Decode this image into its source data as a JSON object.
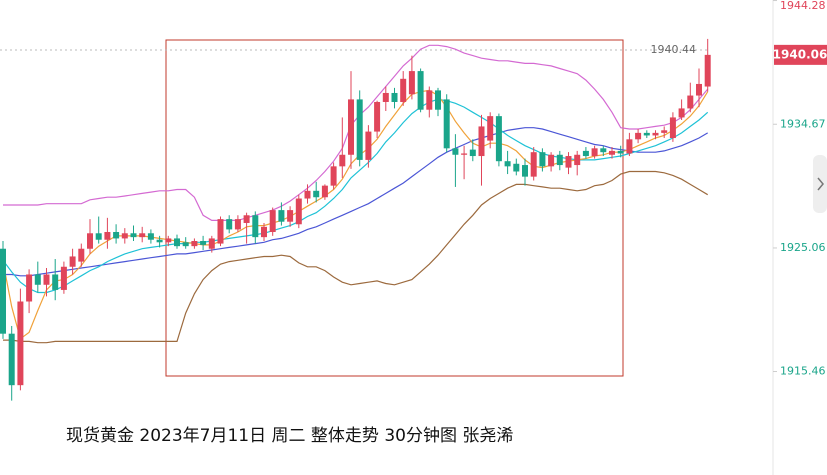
{
  "chart_data": {
    "type": "candlestick",
    "title": "现货黄金 2023年7月11日 周二 整体走势 30分钟图  张尧浠",
    "up_color": "#e0455a",
    "down_color": "#1aa58a",
    "ylim": [
      1907.5,
      1944.4
    ],
    "yticks": [
      1944.28,
      1934.67,
      1925.06,
      1915.46
    ],
    "reference_line": 1940.44,
    "current_price": 1940.06,
    "categories": [
      null,
      null,
      null,
      null,
      null,
      null,
      null,
      null,
      null,
      null,
      null,
      null,
      null,
      null,
      null,
      null,
      null,
      null,
      null,
      null,
      null,
      null,
      null,
      null,
      null,
      null,
      null,
      null,
      null,
      null,
      null,
      null,
      null,
      null,
      null,
      null,
      null,
      null,
      null,
      null,
      null,
      null,
      null,
      null,
      null,
      null,
      null,
      null,
      null,
      null,
      null,
      null,
      null,
      null,
      null,
      null,
      null,
      null,
      null,
      null,
      null,
      null,
      null,
      null,
      null,
      null,
      null,
      null,
      null,
      null,
      null,
      null,
      null,
      null,
      null,
      null,
      null,
      null,
      null,
      null,
      null,
      null
    ],
    "open": [
      1925.0,
      1918.4,
      1914.4,
      1920.9,
      1923.0,
      1922.2,
      1923.0,
      1921.8,
      1923.6,
      1924.0,
      1925.0,
      1926.2,
      1925.7,
      1926.3,
      1925.8,
      1926.2,
      1925.9,
      1926.2,
      1925.7,
      1925.5,
      1925.8,
      1925.5,
      1925.2,
      1925.6,
      1925.0,
      1925.4,
      1927.3,
      1926.5,
      1927.0,
      1927.6,
      1925.9,
      1926.3,
      1928.0,
      1927.1,
      1926.9,
      1928.9,
      1929.5,
      1929.0,
      1929.9,
      1931.4,
      1932.3,
      1936.6,
      1931.9,
      1934.1,
      1936.4,
      1937.1,
      1936.4,
      1937.0,
      1938.8,
      1935.8,
      1937.3,
      1936.6,
      1932.8,
      1932.3,
      1932.7,
      1932.2,
      1933.4,
      1935.3,
      1931.8,
      1931.6,
      1931.5,
      1930.6,
      1932.5,
      1931.4,
      1932.3,
      1931.3,
      1931.5,
      1932.6,
      1932.2,
      1932.8,
      1932.3,
      1932.6,
      1932.4,
      1933.5,
      1934.0,
      1933.8,
      1934.0,
      1933.6,
      1935.2,
      1935.9,
      1936.9,
      1937.6
    ],
    "high": [
      1925.6,
      1919.0,
      1921.9,
      1923.4,
      1924.0,
      1923.5,
      1924.2,
      1924.0,
      1925.0,
      1925.4,
      1927.3,
      1927.5,
      1927.4,
      1926.9,
      1926.6,
      1926.8,
      1926.7,
      1926.5,
      1926.0,
      1926.0,
      1926.1,
      1925.9,
      1925.8,
      1926.0,
      1926.0,
      1927.5,
      1927.6,
      1927.6,
      1927.8,
      1927.9,
      1927.0,
      1928.2,
      1928.6,
      1928.3,
      1929.2,
      1930.0,
      1930.2,
      1930.0,
      1931.7,
      1935.2,
      1938.8,
      1937.3,
      1934.6,
      1936.5,
      1937.6,
      1937.5,
      1938.8,
      1940.0,
      1939.0,
      1937.6,
      1937.5,
      1937.0,
      1933.9,
      1933.0,
      1933.5,
      1935.4,
      1935.6,
      1935.5,
      1932.6,
      1932.0,
      1932.0,
      1932.9,
      1932.8,
      1932.5,
      1932.6,
      1932.5,
      1932.6,
      1932.9,
      1933.0,
      1933.0,
      1932.9,
      1933.0,
      1934.0,
      1934.3,
      1934.2,
      1934.2,
      1934.5,
      1935.6,
      1936.6,
      1937.9,
      1939.0,
      1941.3
    ],
    "low": [
      1918.0,
      1913.2,
      1914.0,
      1920.0,
      1921.6,
      1921.3,
      1921.0,
      1921.5,
      1923.0,
      1923.6,
      1924.6,
      1925.4,
      1925.0,
      1925.4,
      1925.4,
      1925.6,
      1925.5,
      1925.4,
      1925.1,
      1925.2,
      1925.0,
      1925.0,
      1925.0,
      1924.9,
      1924.7,
      1925.2,
      1926.2,
      1926.3,
      1925.4,
      1925.4,
      1925.6,
      1926.0,
      1926.8,
      1926.7,
      1926.6,
      1928.5,
      1928.6,
      1928.8,
      1929.6,
      1930.5,
      1931.2,
      1931.4,
      1931.3,
      1933.6,
      1935.7,
      1935.9,
      1936.1,
      1936.6,
      1935.6,
      1935.2,
      1935.3,
      1932.5,
      1929.8,
      1930.4,
      1931.8,
      1929.9,
      1932.8,
      1931.4,
      1930.8,
      1930.7,
      1929.9,
      1930.3,
      1931.0,
      1931.0,
      1931.1,
      1930.8,
      1930.7,
      1932.0,
      1932.0,
      1932.2,
      1932.0,
      1932.1,
      1932.2,
      1933.2,
      1933.6,
      1933.5,
      1933.6,
      1933.3,
      1935.0,
      1935.6,
      1936.0,
      1937.2
    ],
    "close": [
      1918.4,
      1914.4,
      1920.9,
      1923.0,
      1922.2,
      1923.0,
      1921.8,
      1923.6,
      1924.4,
      1925.0,
      1926.2,
      1925.7,
      1926.3,
      1925.8,
      1926.2,
      1925.9,
      1926.2,
      1925.7,
      1925.5,
      1925.8,
      1925.2,
      1925.2,
      1925.6,
      1925.3,
      1925.8,
      1927.3,
      1926.5,
      1927.3,
      1927.6,
      1925.9,
      1926.7,
      1928.0,
      1927.1,
      1928.0,
      1928.9,
      1929.5,
      1929.0,
      1929.9,
      1931.4,
      1932.3,
      1936.6,
      1931.9,
      1934.1,
      1936.4,
      1937.1,
      1936.4,
      1938.2,
      1938.8,
      1935.8,
      1937.3,
      1935.8,
      1932.8,
      1932.3,
      1932.4,
      1932.2,
      1934.5,
      1935.3,
      1931.8,
      1931.4,
      1931.0,
      1930.6,
      1932.5,
      1931.4,
      1932.3,
      1931.5,
      1932.2,
      1932.3,
      1932.2,
      1932.8,
      1932.5,
      1932.6,
      1932.4,
      1933.5,
      1934.0,
      1933.8,
      1934.0,
      1934.2,
      1935.2,
      1935.9,
      1936.9,
      1937.8,
      1940.06
    ],
    "series": [
      {
        "color": "#d46ad2",
        "values": [
          1928.4,
          1928.4,
          1928.4,
          1928.4,
          1928.4,
          1928.5,
          1928.5,
          1928.5,
          1928.5,
          1928.5,
          1928.8,
          1928.9,
          1929.0,
          1929.0,
          1929.1,
          1929.2,
          1929.3,
          1929.4,
          1929.5,
          1929.5,
          1929.6,
          1929.6,
          1929.0,
          1927.6,
          1927.2,
          1927.2,
          1927.2,
          1927.2,
          1927.4,
          1927.6,
          1927.8,
          1928.0,
          1928.3,
          1928.7,
          1929.2,
          1929.7,
          1930.3,
          1931.0,
          1931.8,
          1932.8,
          1934.6,
          1935.4,
          1936.0,
          1936.8,
          1937.6,
          1938.4,
          1939.2,
          1939.8,
          1940.5,
          1940.8,
          1940.8,
          1940.7,
          1940.5,
          1940.2,
          1940.0,
          1939.8,
          1939.7,
          1939.6,
          1939.6,
          1939.5,
          1939.4,
          1939.4,
          1939.3,
          1939.2,
          1939.0,
          1938.8,
          1938.6,
          1938.1,
          1937.4,
          1936.6,
          1935.6,
          1934.4,
          1934.3,
          1934.3,
          1934.4,
          1934.5,
          1934.6,
          1934.8,
          1935.2,
          1935.8,
          1936.6,
          1937.4
        ]
      },
      {
        "color": "#9c6a3e",
        "values": [
          1917.9,
          1917.9,
          1917.8,
          1917.8,
          1917.7,
          1917.7,
          1917.8,
          1917.8,
          1917.8,
          1917.8,
          1917.8,
          1917.8,
          1917.8,
          1917.8,
          1917.8,
          1917.8,
          1917.8,
          1917.8,
          1917.8,
          1917.8,
          1917.8,
          1920.0,
          1921.5,
          1922.6,
          1923.3,
          1923.8,
          1924.0,
          1924.1,
          1924.2,
          1924.3,
          1924.4,
          1924.4,
          1924.5,
          1924.4,
          1923.9,
          1923.6,
          1923.6,
          1923.3,
          1922.8,
          1922.4,
          1922.2,
          1922.3,
          1922.4,
          1922.5,
          1922.3,
          1922.2,
          1922.4,
          1922.6,
          1923.2,
          1923.8,
          1924.5,
          1925.3,
          1926.1,
          1926.9,
          1927.6,
          1928.4,
          1928.9,
          1929.3,
          1929.7,
          1930.0,
          1930.0,
          1929.9,
          1929.8,
          1929.7,
          1929.7,
          1929.6,
          1929.5,
          1929.6,
          1929.9,
          1930.0,
          1930.3,
          1930.8,
          1931.0,
          1931.0,
          1931.0,
          1931.0,
          1930.9,
          1930.7,
          1930.4,
          1930.0,
          1929.6,
          1929.2
        ]
      },
      {
        "color": "#4b56d6",
        "values": [
          1923.0,
          1923.0,
          1922.9,
          1922.9,
          1923.0,
          1923.1,
          1923.2,
          1923.3,
          1923.4,
          1923.5,
          1923.6,
          1923.7,
          1923.8,
          1923.9,
          1924.0,
          1924.1,
          1924.2,
          1924.3,
          1924.4,
          1924.5,
          1924.6,
          1924.6,
          1924.7,
          1924.8,
          1924.9,
          1925.0,
          1925.1,
          1925.2,
          1925.3,
          1925.4,
          1925.5,
          1925.7,
          1925.8,
          1926.0,
          1926.2,
          1926.5,
          1926.7,
          1927.0,
          1927.3,
          1927.6,
          1927.9,
          1928.2,
          1928.5,
          1928.9,
          1929.3,
          1929.7,
          1930.1,
          1930.6,
          1931.1,
          1931.6,
          1932.1,
          1932.5,
          1932.8,
          1933.1,
          1933.4,
          1933.6,
          1933.8,
          1934.0,
          1934.2,
          1934.3,
          1934.4,
          1934.4,
          1934.3,
          1934.1,
          1933.9,
          1933.7,
          1933.5,
          1933.3,
          1933.1,
          1933.0,
          1932.8,
          1932.7,
          1932.6,
          1932.5,
          1932.5,
          1932.5,
          1932.6,
          1932.8,
          1933.0,
          1933.3,
          1933.6,
          1934.0
        ]
      },
      {
        "color": "#1fc2d6",
        "values": [
          1924.1,
          1923.2,
          1922.4,
          1921.9,
          1921.6,
          1921.6,
          1921.8,
          1922.1,
          1922.5,
          1922.9,
          1923.3,
          1923.6,
          1924.0,
          1924.3,
          1924.6,
          1924.8,
          1925.0,
          1925.1,
          1925.2,
          1925.3,
          1925.4,
          1925.4,
          1925.5,
          1925.5,
          1925.6,
          1925.7,
          1925.8,
          1925.9,
          1926.0,
          1926.1,
          1926.2,
          1926.4,
          1926.6,
          1926.8,
          1927.1,
          1927.5,
          1927.8,
          1928.3,
          1928.9,
          1929.6,
          1930.5,
          1931.1,
          1931.7,
          1932.4,
          1933.3,
          1934.0,
          1934.8,
          1935.5,
          1936.0,
          1936.4,
          1936.6,
          1936.5,
          1936.3,
          1936.0,
          1935.6,
          1935.2,
          1934.8,
          1934.3,
          1933.8,
          1933.4,
          1933.0,
          1932.7,
          1932.4,
          1932.2,
          1932.1,
          1932.0,
          1931.9,
          1931.9,
          1931.9,
          1932.0,
          1932.1,
          1932.2,
          1932.4,
          1932.6,
          1932.8,
          1933.0,
          1933.3,
          1933.6,
          1934.0,
          1934.5,
          1935.0,
          1935.6
        ]
      },
      {
        "color": "#f0a23a",
        "values": [
          1924.0,
          1920.5,
          1918.0,
          1918.5,
          1920.2,
          1921.8,
          1922.5,
          1922.6,
          1923.0,
          1923.7,
          1924.6,
          1925.2,
          1925.6,
          1926.0,
          1926.0,
          1926.0,
          1926.0,
          1925.9,
          1925.8,
          1925.7,
          1925.6,
          1925.5,
          1925.4,
          1925.3,
          1925.3,
          1925.6,
          1926.0,
          1926.3,
          1926.7,
          1926.8,
          1926.8,
          1927.0,
          1927.2,
          1927.5,
          1927.9,
          1928.3,
          1928.7,
          1929.1,
          1929.6,
          1930.4,
          1931.6,
          1932.3,
          1932.8,
          1933.5,
          1934.5,
          1935.4,
          1936.3,
          1937.0,
          1937.2,
          1937.3,
          1936.9,
          1936.0,
          1934.9,
          1934.0,
          1933.2,
          1932.9,
          1933.2,
          1933.2,
          1933.0,
          1932.6,
          1931.9,
          1931.4,
          1931.3,
          1931.5,
          1931.7,
          1931.8,
          1931.9,
          1932.0,
          1932.2,
          1932.3,
          1932.5,
          1932.5,
          1932.7,
          1933.0,
          1933.3,
          1933.6,
          1933.8,
          1934.2,
          1934.7,
          1935.3,
          1936.1,
          1937.2
        ]
      }
    ]
  }
}
